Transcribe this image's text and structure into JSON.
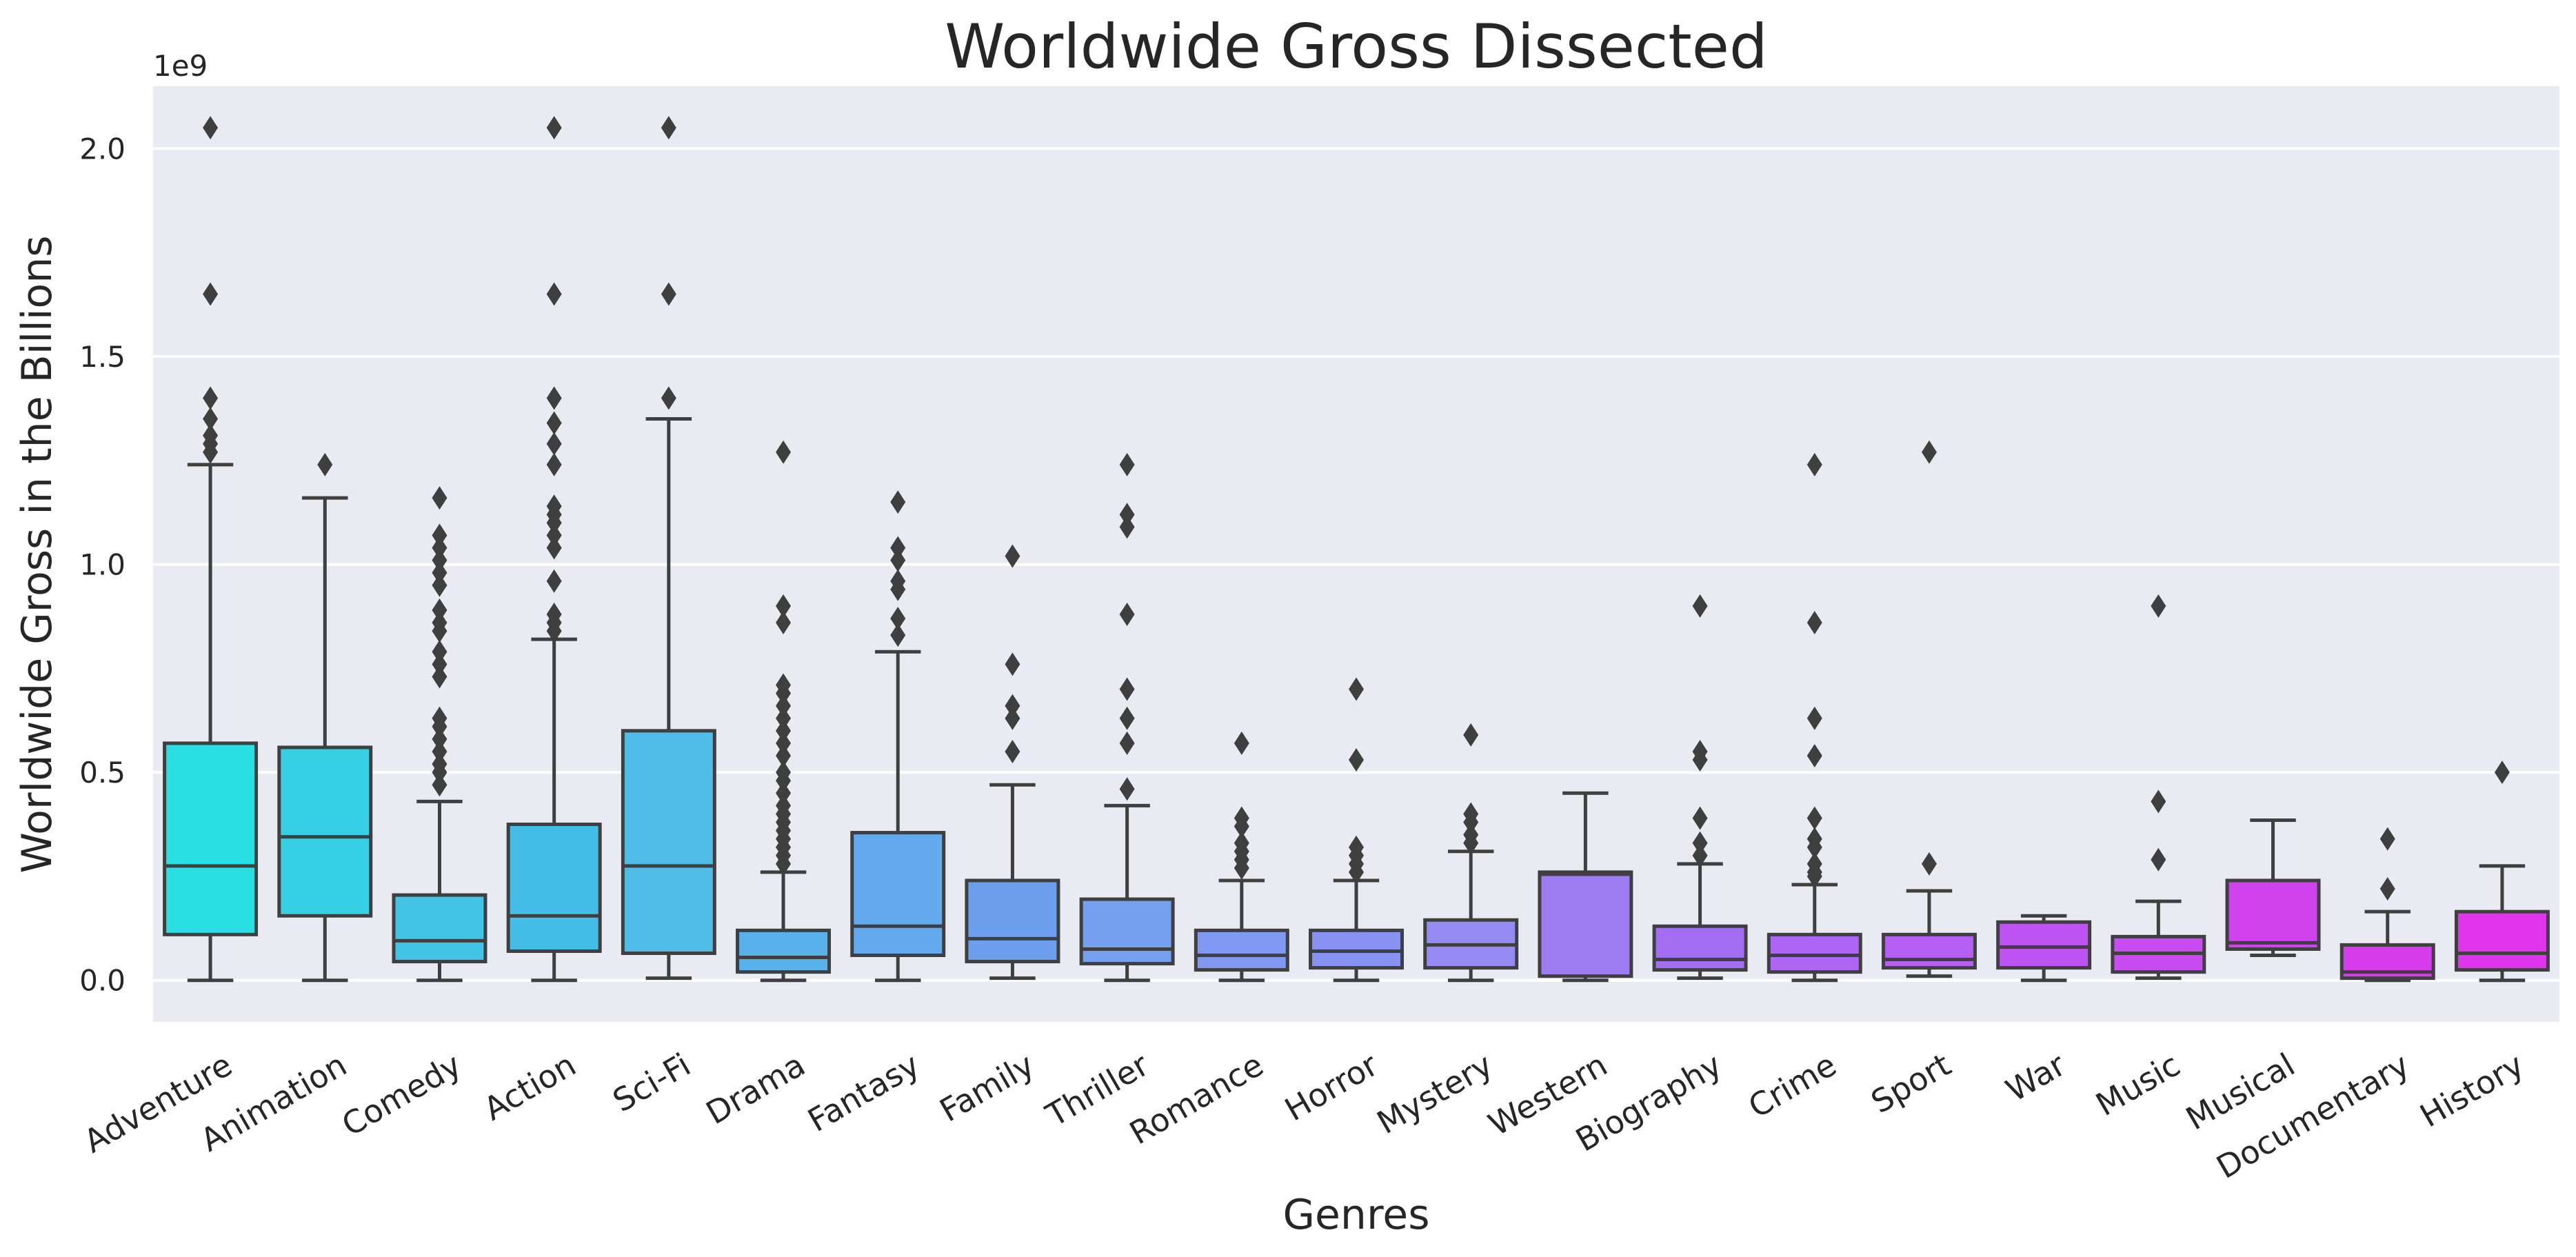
{
  "chart_data": {
    "type": "box",
    "title": "Worldwide Gross Dissected",
    "xlabel": "Genres",
    "ylabel": "Worldwide Gross in the Billions",
    "y_offset_text": "1e9",
    "ylim": [
      -0.1,
      2.15
    ],
    "yticks": [
      0.0,
      0.5,
      1.0,
      1.5,
      2.0
    ],
    "ytick_labels": [
      "0.0",
      "0.5",
      "1.0",
      "1.5",
      "2.0"
    ],
    "grid": true,
    "background": "#eaeaf2",
    "categories": [
      "Adventure",
      "Animation",
      "Comedy",
      "Action",
      "Sci-Fi",
      "Drama",
      "Fantasy",
      "Family",
      "Thriller",
      "Romance",
      "Horror",
      "Mystery",
      "Western",
      "Biography",
      "Crime",
      "Sport",
      "War",
      "Music",
      "Musical",
      "Documentary",
      "History"
    ],
    "colors": [
      "#2adfe3",
      "#36cfe4",
      "#41c4e6",
      "#44bee8",
      "#50bbe6",
      "#58b1ea",
      "#62a9ed",
      "#6ca0ef",
      "#75a0f0",
      "#7f98f1",
      "#8792f2",
      "#958cf3",
      "#9d7cf1",
      "#a36ef2",
      "#ad66f3",
      "#b55ff3",
      "#bd53f2",
      "#c84cf1",
      "#cf42ee",
      "#d73ced",
      "#e034ec"
    ],
    "boxes": [
      {
        "q1": 0.11,
        "median": 0.275,
        "q3": 0.57,
        "whislo": 0.0,
        "whishi": 1.24,
        "fliers": [
          1.27,
          1.29,
          1.31,
          1.35,
          1.4,
          1.65,
          2.05
        ]
      },
      {
        "q1": 0.155,
        "median": 0.345,
        "q3": 0.56,
        "whislo": 0.0,
        "whishi": 1.16,
        "fliers": [
          1.24
        ]
      },
      {
        "q1": 0.045,
        "median": 0.095,
        "q3": 0.205,
        "whislo": 0.0,
        "whishi": 0.43,
        "fliers": [
          0.47,
          0.5,
          0.52,
          0.55,
          0.58,
          0.61,
          0.63,
          0.73,
          0.76,
          0.79,
          0.84,
          0.86,
          0.89,
          0.95,
          0.98,
          1.01,
          1.04,
          1.07,
          1.16
        ]
      },
      {
        "q1": 0.07,
        "median": 0.155,
        "q3": 0.375,
        "whislo": 0.0,
        "whishi": 0.82,
        "fliers": [
          0.84,
          0.86,
          0.88,
          0.96,
          1.04,
          1.07,
          1.1,
          1.12,
          1.14,
          1.24,
          1.29,
          1.34,
          1.4,
          1.65,
          2.05
        ]
      },
      {
        "q1": 0.065,
        "median": 0.275,
        "q3": 0.6,
        "whislo": 0.005,
        "whishi": 1.35,
        "fliers": [
          1.4,
          1.65,
          2.05
        ]
      },
      {
        "q1": 0.02,
        "median": 0.055,
        "q3": 0.12,
        "whislo": 0.0,
        "whishi": 0.26,
        "fliers": [
          0.28,
          0.3,
          0.32,
          0.34,
          0.36,
          0.38,
          0.4,
          0.42,
          0.45,
          0.48,
          0.5,
          0.54,
          0.57,
          0.6,
          0.63,
          0.66,
          0.69,
          0.71,
          0.86,
          0.9,
          1.27
        ]
      },
      {
        "q1": 0.06,
        "median": 0.13,
        "q3": 0.355,
        "whislo": 0.0,
        "whishi": 0.79,
        "fliers": [
          0.83,
          0.87,
          0.94,
          0.96,
          1.01,
          1.04,
          1.15
        ]
      },
      {
        "q1": 0.045,
        "median": 0.1,
        "q3": 0.24,
        "whislo": 0.005,
        "whishi": 0.47,
        "fliers": [
          0.55,
          0.63,
          0.66,
          0.76,
          1.02
        ]
      },
      {
        "q1": 0.04,
        "median": 0.075,
        "q3": 0.195,
        "whislo": 0.0,
        "whishi": 0.42,
        "fliers": [
          0.46,
          0.57,
          0.63,
          0.7,
          0.88,
          1.09,
          1.12,
          1.24
        ]
      },
      {
        "q1": 0.025,
        "median": 0.06,
        "q3": 0.12,
        "whislo": 0.0,
        "whishi": 0.24,
        "fliers": [
          0.27,
          0.29,
          0.31,
          0.33,
          0.37,
          0.39,
          0.57
        ]
      },
      {
        "q1": 0.03,
        "median": 0.07,
        "q3": 0.12,
        "whislo": 0.0,
        "whishi": 0.24,
        "fliers": [
          0.26,
          0.28,
          0.3,
          0.32,
          0.53,
          0.7
        ]
      },
      {
        "q1": 0.03,
        "median": 0.085,
        "q3": 0.145,
        "whislo": 0.0,
        "whishi": 0.31,
        "fliers": [
          0.33,
          0.35,
          0.38,
          0.4,
          0.59
        ]
      },
      {
        "q1": 0.01,
        "median": 0.255,
        "q3": 0.26,
        "whislo": 0.0,
        "whishi": 0.45,
        "fliers": []
      },
      {
        "q1": 0.025,
        "median": 0.05,
        "q3": 0.13,
        "whislo": 0.005,
        "whishi": 0.28,
        "fliers": [
          0.3,
          0.33,
          0.39,
          0.53,
          0.55,
          0.9
        ]
      },
      {
        "q1": 0.02,
        "median": 0.06,
        "q3": 0.11,
        "whislo": 0.0,
        "whishi": 0.23,
        "fliers": [
          0.25,
          0.26,
          0.28,
          0.32,
          0.34,
          0.39,
          0.54,
          0.63,
          0.86,
          1.24
        ]
      },
      {
        "q1": 0.03,
        "median": 0.05,
        "q3": 0.11,
        "whislo": 0.01,
        "whishi": 0.215,
        "fliers": [
          0.28,
          1.27
        ]
      },
      {
        "q1": 0.03,
        "median": 0.08,
        "q3": 0.14,
        "whislo": 0.0,
        "whishi": 0.155,
        "fliers": []
      },
      {
        "q1": 0.02,
        "median": 0.065,
        "q3": 0.105,
        "whislo": 0.005,
        "whishi": 0.19,
        "fliers": [
          0.29,
          0.43,
          0.9
        ]
      },
      {
        "q1": 0.075,
        "median": 0.09,
        "q3": 0.24,
        "whislo": 0.06,
        "whishi": 0.385,
        "fliers": []
      },
      {
        "q1": 0.005,
        "median": 0.02,
        "q3": 0.085,
        "whislo": 0.0,
        "whishi": 0.165,
        "fliers": [
          0.22,
          0.34
        ]
      },
      {
        "q1": 0.025,
        "median": 0.065,
        "q3": 0.165,
        "whislo": 0.0,
        "whishi": 0.275,
        "fliers": [
          0.5
        ]
      }
    ]
  }
}
